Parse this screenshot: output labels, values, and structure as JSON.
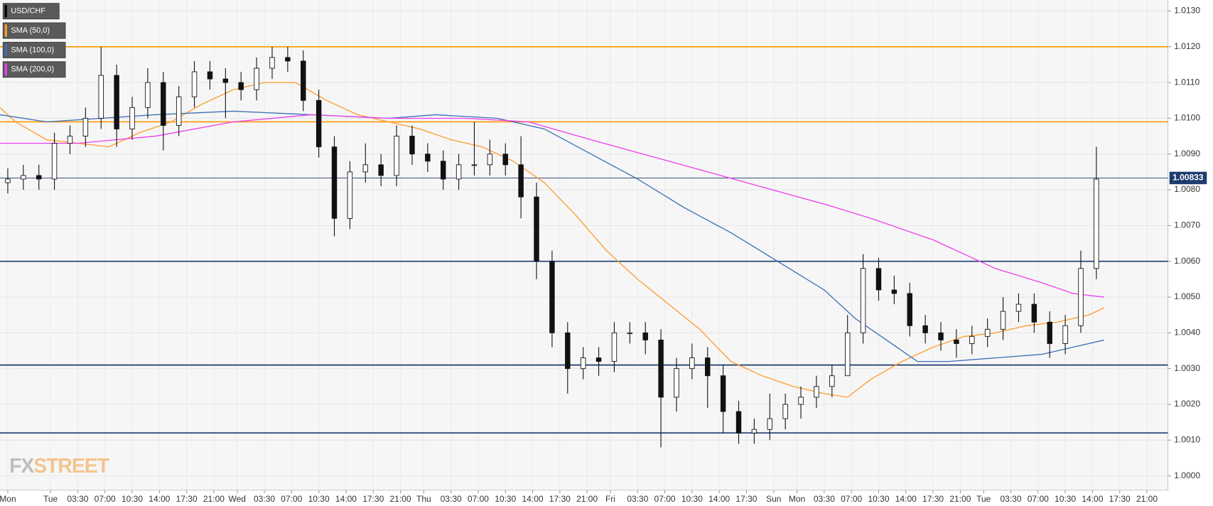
{
  "chart_data": {
    "type": "candlestick",
    "legend": [
      {
        "name": "USD/CHF",
        "color": "#000000"
      },
      {
        "name": "SMA (50,0)",
        "color": "#ff9b2f"
      },
      {
        "name": "SMA (100,0)",
        "color": "#3b6fb6"
      },
      {
        "name": "SMA (200,0)",
        "color": "#ee3df0"
      }
    ],
    "last_price": 1.00833,
    "last_price_color": "#1d3b6e",
    "watermark": {
      "fx": "FX",
      "street": "STREET"
    },
    "xlim": [
      0,
      150
    ],
    "xticks": [
      {
        "value": 1,
        "label": "Mon"
      },
      {
        "value": 6.5,
        "label": "Tue"
      },
      {
        "value": 10,
        "label": "03:30"
      },
      {
        "value": 13.5,
        "label": "07:00"
      },
      {
        "value": 17,
        "label": "10:30"
      },
      {
        "value": 20.5,
        "label": "14:00"
      },
      {
        "value": 24,
        "label": "17:30"
      },
      {
        "value": 27.5,
        "label": "21:00"
      },
      {
        "value": 30.5,
        "label": "Wed"
      },
      {
        "value": 34,
        "label": "03:30"
      },
      {
        "value": 37.5,
        "label": "07:00"
      },
      {
        "value": 41,
        "label": "10:30"
      },
      {
        "value": 44.5,
        "label": "14:00"
      },
      {
        "value": 48,
        "label": "17:30"
      },
      {
        "value": 51.5,
        "label": "21:00"
      },
      {
        "value": 54.5,
        "label": "Thu"
      },
      {
        "value": 58,
        "label": "03:30"
      },
      {
        "value": 61.5,
        "label": "07:00"
      },
      {
        "value": 65,
        "label": "10:30"
      },
      {
        "value": 68.5,
        "label": "14:00"
      },
      {
        "value": 72,
        "label": "17:30"
      },
      {
        "value": 75.5,
        "label": "21:00"
      },
      {
        "value": 78.5,
        "label": "Fri"
      },
      {
        "value": 82,
        "label": "03:30"
      },
      {
        "value": 85.5,
        "label": "07:00"
      },
      {
        "value": 89,
        "label": "10:30"
      },
      {
        "value": 92.5,
        "label": "14:00"
      },
      {
        "value": 96,
        "label": "17:30"
      },
      {
        "value": 99.5,
        "label": "Sun"
      },
      {
        "value": 102.5,
        "label": "Mon"
      },
      {
        "value": 106,
        "label": "03:30"
      },
      {
        "value": 109.5,
        "label": "07:00"
      },
      {
        "value": 113,
        "label": "10:30"
      },
      {
        "value": 116.5,
        "label": "14:00"
      },
      {
        "value": 120,
        "label": "17:30"
      },
      {
        "value": 123.5,
        "label": "21:00"
      },
      {
        "value": 126.5,
        "label": "Tue"
      },
      {
        "value": 130,
        "label": "03:30"
      },
      {
        "value": 133.5,
        "label": "07:00"
      },
      {
        "value": 137,
        "label": "10:30"
      },
      {
        "value": 140.5,
        "label": "14:00"
      },
      {
        "value": 144,
        "label": "17:30"
      },
      {
        "value": 147.5,
        "label": "21:00"
      }
    ],
    "ylim": [
      0.9996,
      1.0133
    ],
    "yticks": [
      {
        "value": 1.0,
        "label": "1.0000"
      },
      {
        "value": 1.001,
        "label": "1.0010"
      },
      {
        "value": 1.002,
        "label": "1.0020"
      },
      {
        "value": 1.003,
        "label": "1.0030"
      },
      {
        "value": 1.004,
        "label": "1.0040"
      },
      {
        "value": 1.005,
        "label": "1.0050"
      },
      {
        "value": 1.006,
        "label": "1.0060"
      },
      {
        "value": 1.007,
        "label": "1.0070"
      },
      {
        "value": 1.008,
        "label": "1.0080"
      },
      {
        "value": 1.009,
        "label": "1.0090"
      },
      {
        "value": 1.01,
        "label": "1.0100"
      },
      {
        "value": 1.011,
        "label": "1.0110"
      },
      {
        "value": 1.012,
        "label": "1.0120"
      },
      {
        "value": 1.013,
        "label": "1.0130"
      }
    ],
    "grid": true,
    "levels": [
      {
        "value": 1.012,
        "color": "#ff9800"
      },
      {
        "value": 1.0099,
        "color": "#ff9800"
      },
      {
        "value": 1.006,
        "color": "#1d3b6e"
      },
      {
        "value": 1.0031,
        "color": "#1d3b6e"
      },
      {
        "value": 1.0012,
        "color": "#1d3b6e"
      }
    ],
    "candles": {
      "x": [
        1,
        3,
        5,
        7,
        9,
        11,
        13,
        15,
        17,
        19,
        21,
        23,
        25,
        27,
        29,
        31,
        33,
        35,
        37,
        39,
        41,
        43,
        45,
        47,
        49,
        51,
        53,
        55,
        57,
        59,
        61,
        63,
        65,
        67,
        69,
        71,
        73,
        75,
        77,
        79,
        81,
        83,
        85,
        87,
        89,
        91,
        93,
        95,
        97,
        99,
        101,
        103,
        105,
        107,
        109,
        111,
        113,
        115,
        117,
        119,
        121,
        123,
        125,
        127,
        129,
        131,
        133,
        135,
        137,
        139,
        141
      ],
      "open": [
        1.0082,
        1.0083,
        1.0084,
        1.0083,
        1.0093,
        1.0095,
        1.01,
        1.0112,
        1.0097,
        1.0103,
        1.011,
        1.0098,
        1.0106,
        1.0113,
        1.0111,
        1.011,
        1.0108,
        1.0114,
        1.0117,
        1.0116,
        1.0105,
        1.0092,
        1.0072,
        1.0085,
        1.0087,
        1.0084,
        1.0095,
        1.009,
        1.0088,
        1.0083,
        1.0087,
        1.0087,
        1.009,
        1.0087,
        1.0078,
        1.006,
        1.004,
        1.003,
        1.0033,
        1.0032,
        1.004,
        1.004,
        1.0038,
        1.0022,
        1.003,
        1.0033,
        1.0028,
        1.0018,
        1.0012,
        1.0013,
        1.0016,
        1.002,
        1.0022,
        1.0025,
        1.0028,
        1.004,
        1.0058,
        1.0052,
        1.0051,
        1.0042,
        1.004,
        1.0038,
        1.0037,
        1.0039,
        1.0041,
        1.0046,
        1.0048,
        1.0043,
        1.0037,
        1.0042,
        1.0058
      ],
      "high": [
        1.0086,
        1.0087,
        1.0087,
        1.0096,
        1.0098,
        1.0103,
        1.012,
        1.0115,
        1.0106,
        1.0114,
        1.0113,
        1.0109,
        1.0116,
        1.0116,
        1.0114,
        1.0113,
        1.0117,
        1.012,
        1.012,
        1.0119,
        1.0108,
        1.0095,
        1.0088,
        1.0093,
        1.009,
        1.0098,
        1.0098,
        1.0093,
        1.0091,
        1.009,
        1.0099,
        1.0094,
        1.0093,
        1.0095,
        1.0082,
        1.0063,
        1.0043,
        1.0036,
        1.0036,
        1.0043,
        1.0043,
        1.0043,
        1.0041,
        1.0033,
        1.0037,
        1.0036,
        1.0031,
        1.0021,
        1.0016,
        1.0023,
        1.0023,
        1.0025,
        1.0028,
        1.0031,
        1.0045,
        1.0062,
        1.0061,
        1.0056,
        1.0054,
        1.0045,
        1.0043,
        1.0041,
        1.0042,
        1.0044,
        1.005,
        1.0051,
        1.0051,
        1.0046,
        1.0045,
        1.0063,
        1.0092
      ],
      "low": [
        1.0079,
        1.008,
        1.008,
        1.008,
        1.009,
        1.0092,
        1.0097,
        1.0092,
        1.0094,
        1.01,
        1.0091,
        1.0095,
        1.0103,
        1.0108,
        1.01,
        1.0105,
        1.0105,
        1.0111,
        1.0113,
        1.0102,
        1.0089,
        1.0067,
        1.0069,
        1.0082,
        1.0081,
        1.0081,
        1.0087,
        1.0085,
        1.008,
        1.008,
        1.0084,
        1.0084,
        1.0084,
        1.0072,
        1.0055,
        1.0036,
        1.0023,
        1.0027,
        1.0028,
        1.0029,
        1.0037,
        1.0034,
        1.0008,
        1.0018,
        1.0027,
        1.0019,
        1.0012,
        1.0009,
        1.0009,
        1.001,
        1.0013,
        1.0016,
        1.0019,
        1.0022,
        1.0031,
        1.0037,
        1.0049,
        1.0048,
        1.0039,
        1.0037,
        1.0035,
        1.0033,
        1.0034,
        1.0036,
        1.0038,
        1.0043,
        1.004,
        1.0033,
        1.0034,
        1.004,
        1.0055
      ],
      "close": [
        1.0083,
        1.0084,
        1.0083,
        1.0093,
        1.0095,
        1.01,
        1.0112,
        1.0097,
        1.0103,
        1.011,
        1.0098,
        1.0106,
        1.0113,
        1.0111,
        1.011,
        1.0108,
        1.0114,
        1.0117,
        1.0116,
        1.0105,
        1.0092,
        1.0072,
        1.0085,
        1.0087,
        1.0084,
        1.0095,
        1.009,
        1.0088,
        1.0083,
        1.0087,
        1.0087,
        1.009,
        1.0087,
        1.0078,
        1.006,
        1.004,
        1.003,
        1.0033,
        1.0032,
        1.004,
        1.004,
        1.0038,
        1.0022,
        1.003,
        1.0033,
        1.0028,
        1.0018,
        1.0012,
        1.0013,
        1.0016,
        1.002,
        1.0022,
        1.0025,
        1.0028,
        1.004,
        1.0058,
        1.0052,
        1.0051,
        1.0042,
        1.004,
        1.0038,
        1.0037,
        1.0039,
        1.0041,
        1.0046,
        1.0048,
        1.0043,
        1.0037,
        1.0042,
        1.0058,
        1.0083
      ]
    },
    "series": [
      {
        "name": "SMA (50,0)",
        "color": "#ff9b2f",
        "x": [
          0,
          2,
          6,
          10,
          14,
          18,
          22,
          26,
          30,
          34,
          38,
          42,
          46,
          50,
          54,
          58,
          62,
          66,
          70,
          74,
          78,
          82,
          86,
          90,
          94,
          98,
          102,
          106,
          109,
          112,
          116,
          120,
          124,
          128,
          132,
          136,
          140,
          142
        ],
        "values": [
          1.0103,
          1.0099,
          1.0094,
          1.0093,
          1.0092,
          1.0096,
          1.0099,
          1.0104,
          1.0108,
          1.011,
          1.011,
          1.0105,
          1.0101,
          1.0099,
          1.0097,
          1.0094,
          1.0092,
          1.0088,
          1.0082,
          1.0073,
          1.0063,
          1.0055,
          1.0048,
          1.0041,
          1.0032,
          1.0028,
          1.0025,
          1.0023,
          1.0022,
          1.0027,
          1.0032,
          1.0036,
          1.0039,
          1.004,
          1.0042,
          1.0043,
          1.0045,
          1.0047
        ]
      },
      {
        "name": "SMA (100,0)",
        "color": "#3b6fb6",
        "x": [
          0,
          6,
          20,
          30,
          40,
          50,
          56,
          64,
          70,
          76,
          82,
          88,
          94,
          100,
          106,
          110,
          114,
          118,
          122,
          128,
          134,
          138,
          142
        ],
        "values": [
          1.0101,
          1.0099,
          1.0101,
          1.0102,
          1.0101,
          1.01,
          1.0101,
          1.01,
          1.0097,
          1.009,
          1.0083,
          1.0075,
          1.0068,
          1.006,
          1.0052,
          1.0044,
          1.0038,
          1.0032,
          1.0032,
          1.0033,
          1.0034,
          1.0036,
          1.0038
        ]
      },
      {
        "name": "SMA (200,0)",
        "color": "#ee3df0",
        "x": [
          0,
          10,
          20,
          30,
          40,
          50,
          60,
          68,
          76,
          86,
          96,
          106,
          112,
          120,
          128,
          134,
          138,
          142
        ],
        "values": [
          1.0093,
          1.0093,
          1.0095,
          1.0099,
          1.0101,
          1.01,
          1.01,
          1.0099,
          1.0094,
          1.0088,
          1.0082,
          1.0076,
          1.0072,
          1.0066,
          1.0058,
          1.0054,
          1.0051,
          1.005
        ]
      }
    ]
  }
}
